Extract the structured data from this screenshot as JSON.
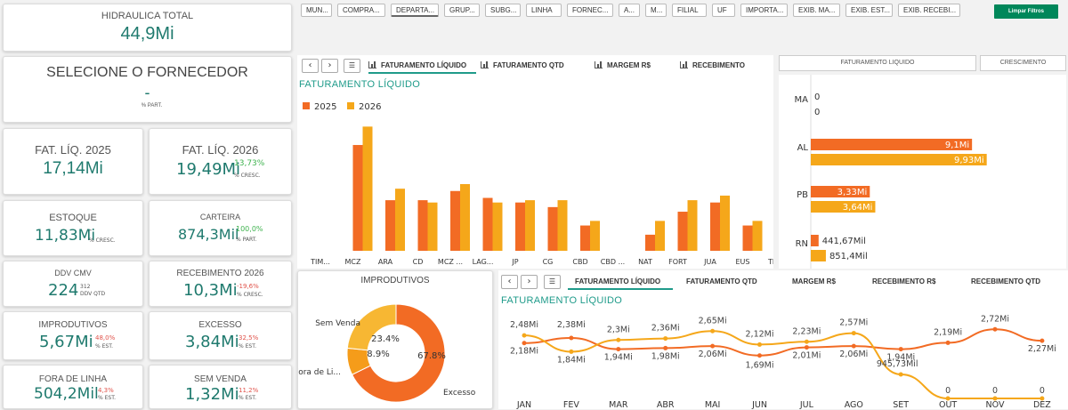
{
  "kpis": {
    "hidraulica": {
      "title": "HIDRAULICA TOTAL",
      "value": "44,9Mi"
    },
    "fornecedor": {
      "title": "SELECIONE O FORNECEDOR",
      "value": "-",
      "sub": "% PART."
    },
    "fat2025": {
      "title": "FAT. LÍQ. 2025",
      "value": "17,14Mi"
    },
    "fat2026": {
      "title": "FAT. LÍQ. 2026",
      "value": "19,49Mi",
      "pct": "13,73%",
      "sub": "% CRESC."
    },
    "estoque": {
      "title": "ESTOQUE",
      "value": "11,83Mi",
      "pct": "-",
      "sub": "% CRESC."
    },
    "carteira": {
      "title": "CARTEIRA",
      "value": "874,3Mil",
      "pct": "100,0%",
      "sub": "% PART."
    },
    "ddv": {
      "title": "DDV CMV",
      "value": "224",
      "pct": "312",
      "sub": "DDV QTD"
    },
    "receb": {
      "title": "RECEBIMENTO 2026",
      "value": "10,3Mi",
      "pct": "-19,6%",
      "sub": "% CRESC."
    },
    "improd": {
      "title": "IMPRODUTIVOS",
      "value": "5,67Mi",
      "pct": "48,0%",
      "sub": "% EST."
    },
    "excesso": {
      "title": "EXCESSO",
      "value": "3,84Mi",
      "pct": "32,5%",
      "sub": "% EST."
    },
    "foralinha": {
      "title": "FORA DE LINHA",
      "value": "504,2Mil",
      "pct": "4,3%",
      "sub": "% EST."
    },
    "semvenda": {
      "title": "SEM VENDA",
      "value": "1,32Mi",
      "pct": "11,2%",
      "sub": "% EST."
    }
  },
  "filters": [
    "MUN...",
    "COMPRA...",
    "DEPARTA...",
    "GRUP...",
    "SUBG...",
    "LINHA",
    "FORNEC...",
    "A...",
    "M...",
    "FILIAL",
    "UF",
    "IMPORTA...",
    "EXIB. MA...",
    "EXIB. EST...",
    "EXIB. RECEBI..."
  ],
  "clear_filters": "Limpar Filtros",
  "tabs_top": [
    "FATURAMENTO LÍQUIDO",
    "FATURAMENTO QTD",
    "MARGEM R$",
    "RECEBIMENTO"
  ],
  "tabs_bottom": [
    "FATURAMENTO LÍQUIDO",
    "FATURAMENTO QTD",
    "MARGEM R$",
    "RECEBIMENTO R$",
    "RECEBIMENTO QTD"
  ],
  "right_buttons": [
    "FATURAMENTO LIQUIDO",
    "CRESCIMENTO"
  ],
  "colors": {
    "c2025": "#f26b24",
    "c2026": "#f5a71a",
    "accent": "#1f7a6e"
  },
  "chart_data": [
    {
      "type": "bar",
      "title": "FATURAMENTO LÍQUIDO",
      "categories": [
        "TIM...",
        "MCZ",
        "ARA",
        "CD",
        "MCZ ...",
        "LAG...",
        "JP",
        "CG",
        "CBD",
        "CBD ...",
        "NAT",
        "FORT",
        "JUA",
        "EUS",
        "THE"
      ],
      "series": [
        {
          "name": "2025",
          "values": [
            0,
            4.6,
            2.2,
            2.2,
            2.6,
            2.3,
            2.1,
            1.9,
            1.1,
            0,
            0.7,
            1.7,
            2.1,
            1.1,
            1.6
          ]
        },
        {
          "name": "2026",
          "values": [
            0,
            5.4,
            2.7,
            2.1,
            2.9,
            2.1,
            2.2,
            2.2,
            1.3,
            0,
            1.3,
            2.2,
            2.4,
            1.3,
            1.9
          ]
        }
      ],
      "legend": "top-left"
    },
    {
      "type": "bar",
      "orientation": "horizontal",
      "categories": [
        "MA",
        "AL",
        "PB",
        "RN"
      ],
      "series": [
        {
          "name": "2025",
          "values": [
            0,
            9.1,
            3.33,
            0.44167
          ],
          "labels": [
            "0",
            "9,1Mi",
            "3,33Mi",
            "441,67Mil"
          ]
        },
        {
          "name": "2026",
          "values": [
            0,
            9.93,
            3.64,
            0.8514
          ],
          "labels": [
            "0",
            "9,93Mi",
            "3,64Mi",
            "851,4Mil"
          ]
        }
      ]
    },
    {
      "type": "pie",
      "title": "IMPRODUTIVOS",
      "slices": [
        {
          "name": "Excesso",
          "value": 67.8,
          "label": "67.8%",
          "color": "#f26b24"
        },
        {
          "name": "Fora de Li...",
          "value": 8.9,
          "label": "8.9%",
          "color": "#f59c1a"
        },
        {
          "name": "Sem Venda",
          "value": 23.4,
          "label": "23.4%",
          "color": "#f7b733"
        }
      ]
    },
    {
      "type": "line",
      "title": "FATURAMENTO LÍQUIDO",
      "categories": [
        "JAN",
        "FEV",
        "MAR",
        "ABR",
        "MAI",
        "JUN",
        "JUL",
        "AGO",
        "SET",
        "OUT",
        "NOV",
        "DEZ"
      ],
      "series": [
        {
          "name": "2025",
          "values": [
            2.18,
            2.38,
            1.94,
            1.98,
            2.06,
            1.69,
            2.01,
            2.06,
            1.94,
            2.19,
            2.72,
            2.27
          ],
          "labels": [
            "2,18Mi",
            "2,38Mi",
            "1,94Mi",
            "1,98Mi",
            "2,06Mi",
            "1,69Mi",
            "2,01Mi",
            "2,06Mi",
            "1,94Mi",
            "2,19Mi",
            "2,72Mi",
            "2,27Mi"
          ]
        },
        {
          "name": "2026",
          "values": [
            2.48,
            1.84,
            2.3,
            2.36,
            2.65,
            2.12,
            2.23,
            2.57,
            0.94573,
            0,
            0,
            0
          ],
          "labels": [
            "2,48Mi",
            "1,84Mi",
            "2,3Mi",
            "2,36Mi",
            "2,65Mi",
            "2,12Mi",
            "2,23Mi",
            "2,57Mi",
            "945,73Mil",
            "0",
            "0",
            "0"
          ]
        }
      ]
    }
  ]
}
